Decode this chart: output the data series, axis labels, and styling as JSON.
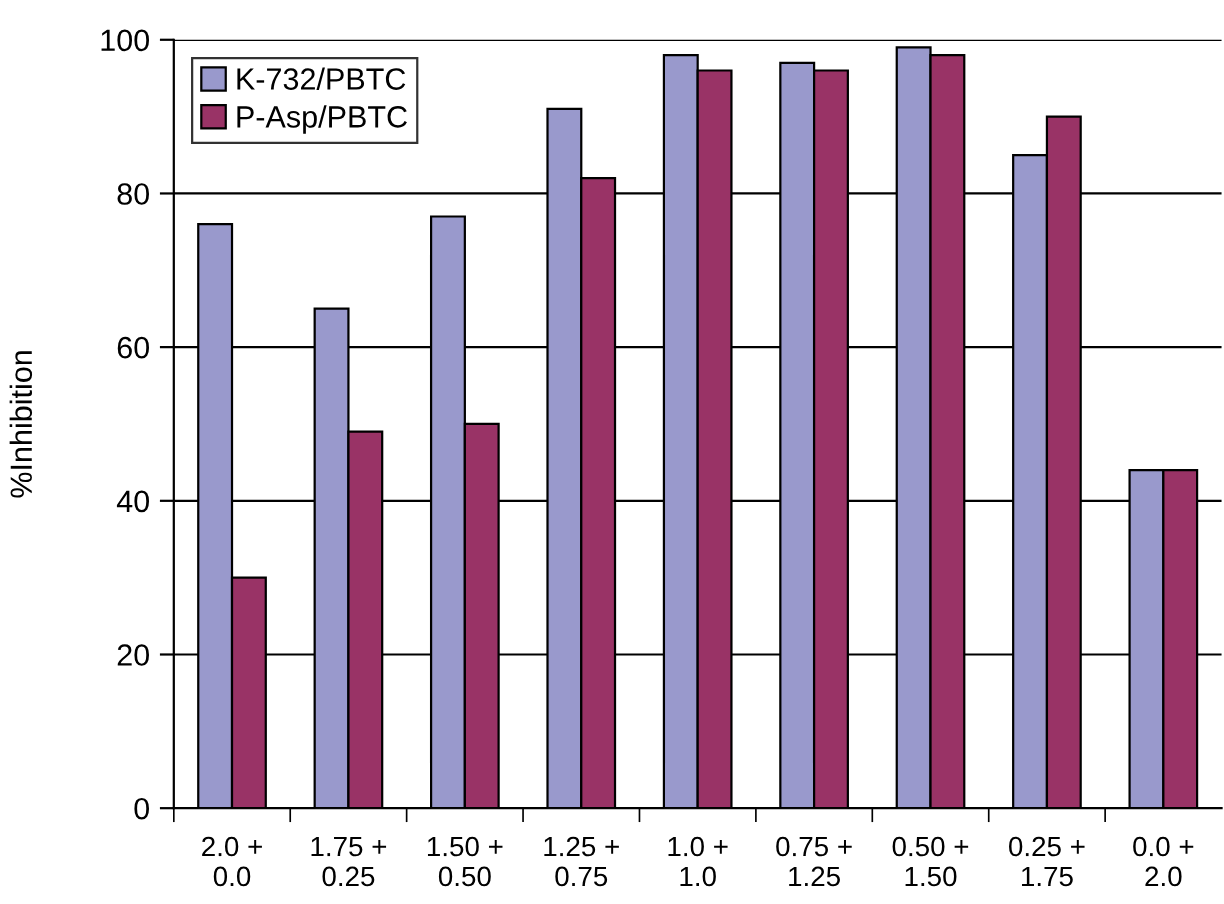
{
  "chart_data": {
    "type": "bar",
    "ylabel": "%Inhibition",
    "categories": [
      "2.0 +\n0.0",
      "1.75 +\n0.25",
      "1.50 +\n0.50",
      "1.25 +\n0.75",
      "1.0 +\n1.0",
      "0.75 +\n1.25",
      "0.50 +\n1.50",
      "0.25 +\n1.75",
      "0.0 +\n2.0"
    ],
    "series": [
      {
        "name": "K-732/PBTC",
        "color": "#9999cc",
        "values": [
          76,
          65,
          77,
          91,
          98,
          97,
          99,
          85,
          44
        ]
      },
      {
        "name": "P-Asp/PBTC",
        "color": "#993366",
        "values": [
          30,
          49,
          50,
          82,
          96,
          96,
          98,
          90,
          44
        ]
      }
    ],
    "ylim": [
      0,
      100
    ],
    "yticks": [
      0,
      20,
      40,
      60,
      80,
      100
    ],
    "grid": "y",
    "legend": "top left"
  }
}
